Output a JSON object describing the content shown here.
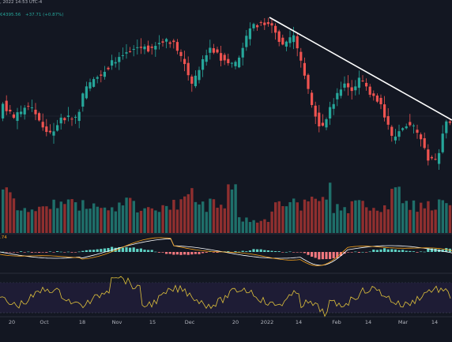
{
  "header": {
    "date_time": ", 2022 14:53 UTC-4",
    "price": "€4395.56",
    "change": "+37.71 (+0.87%)",
    "indicator_value": ".74"
  },
  "x_axis": {
    "labels": [
      "20",
      "Oct",
      "18",
      "Nov",
      "15",
      "Dec",
      "20",
      "2022",
      "14",
      "Feb",
      "14",
      "Mar",
      "14"
    ]
  },
  "colors": {
    "up": "#26a69a",
    "down": "#ef5350",
    "vol_up": "#1f6f6a",
    "vol_down": "#8f2f2f",
    "bg": "#131722",
    "rsi": "#e0c23b",
    "trend": "#ffffff"
  }
}
